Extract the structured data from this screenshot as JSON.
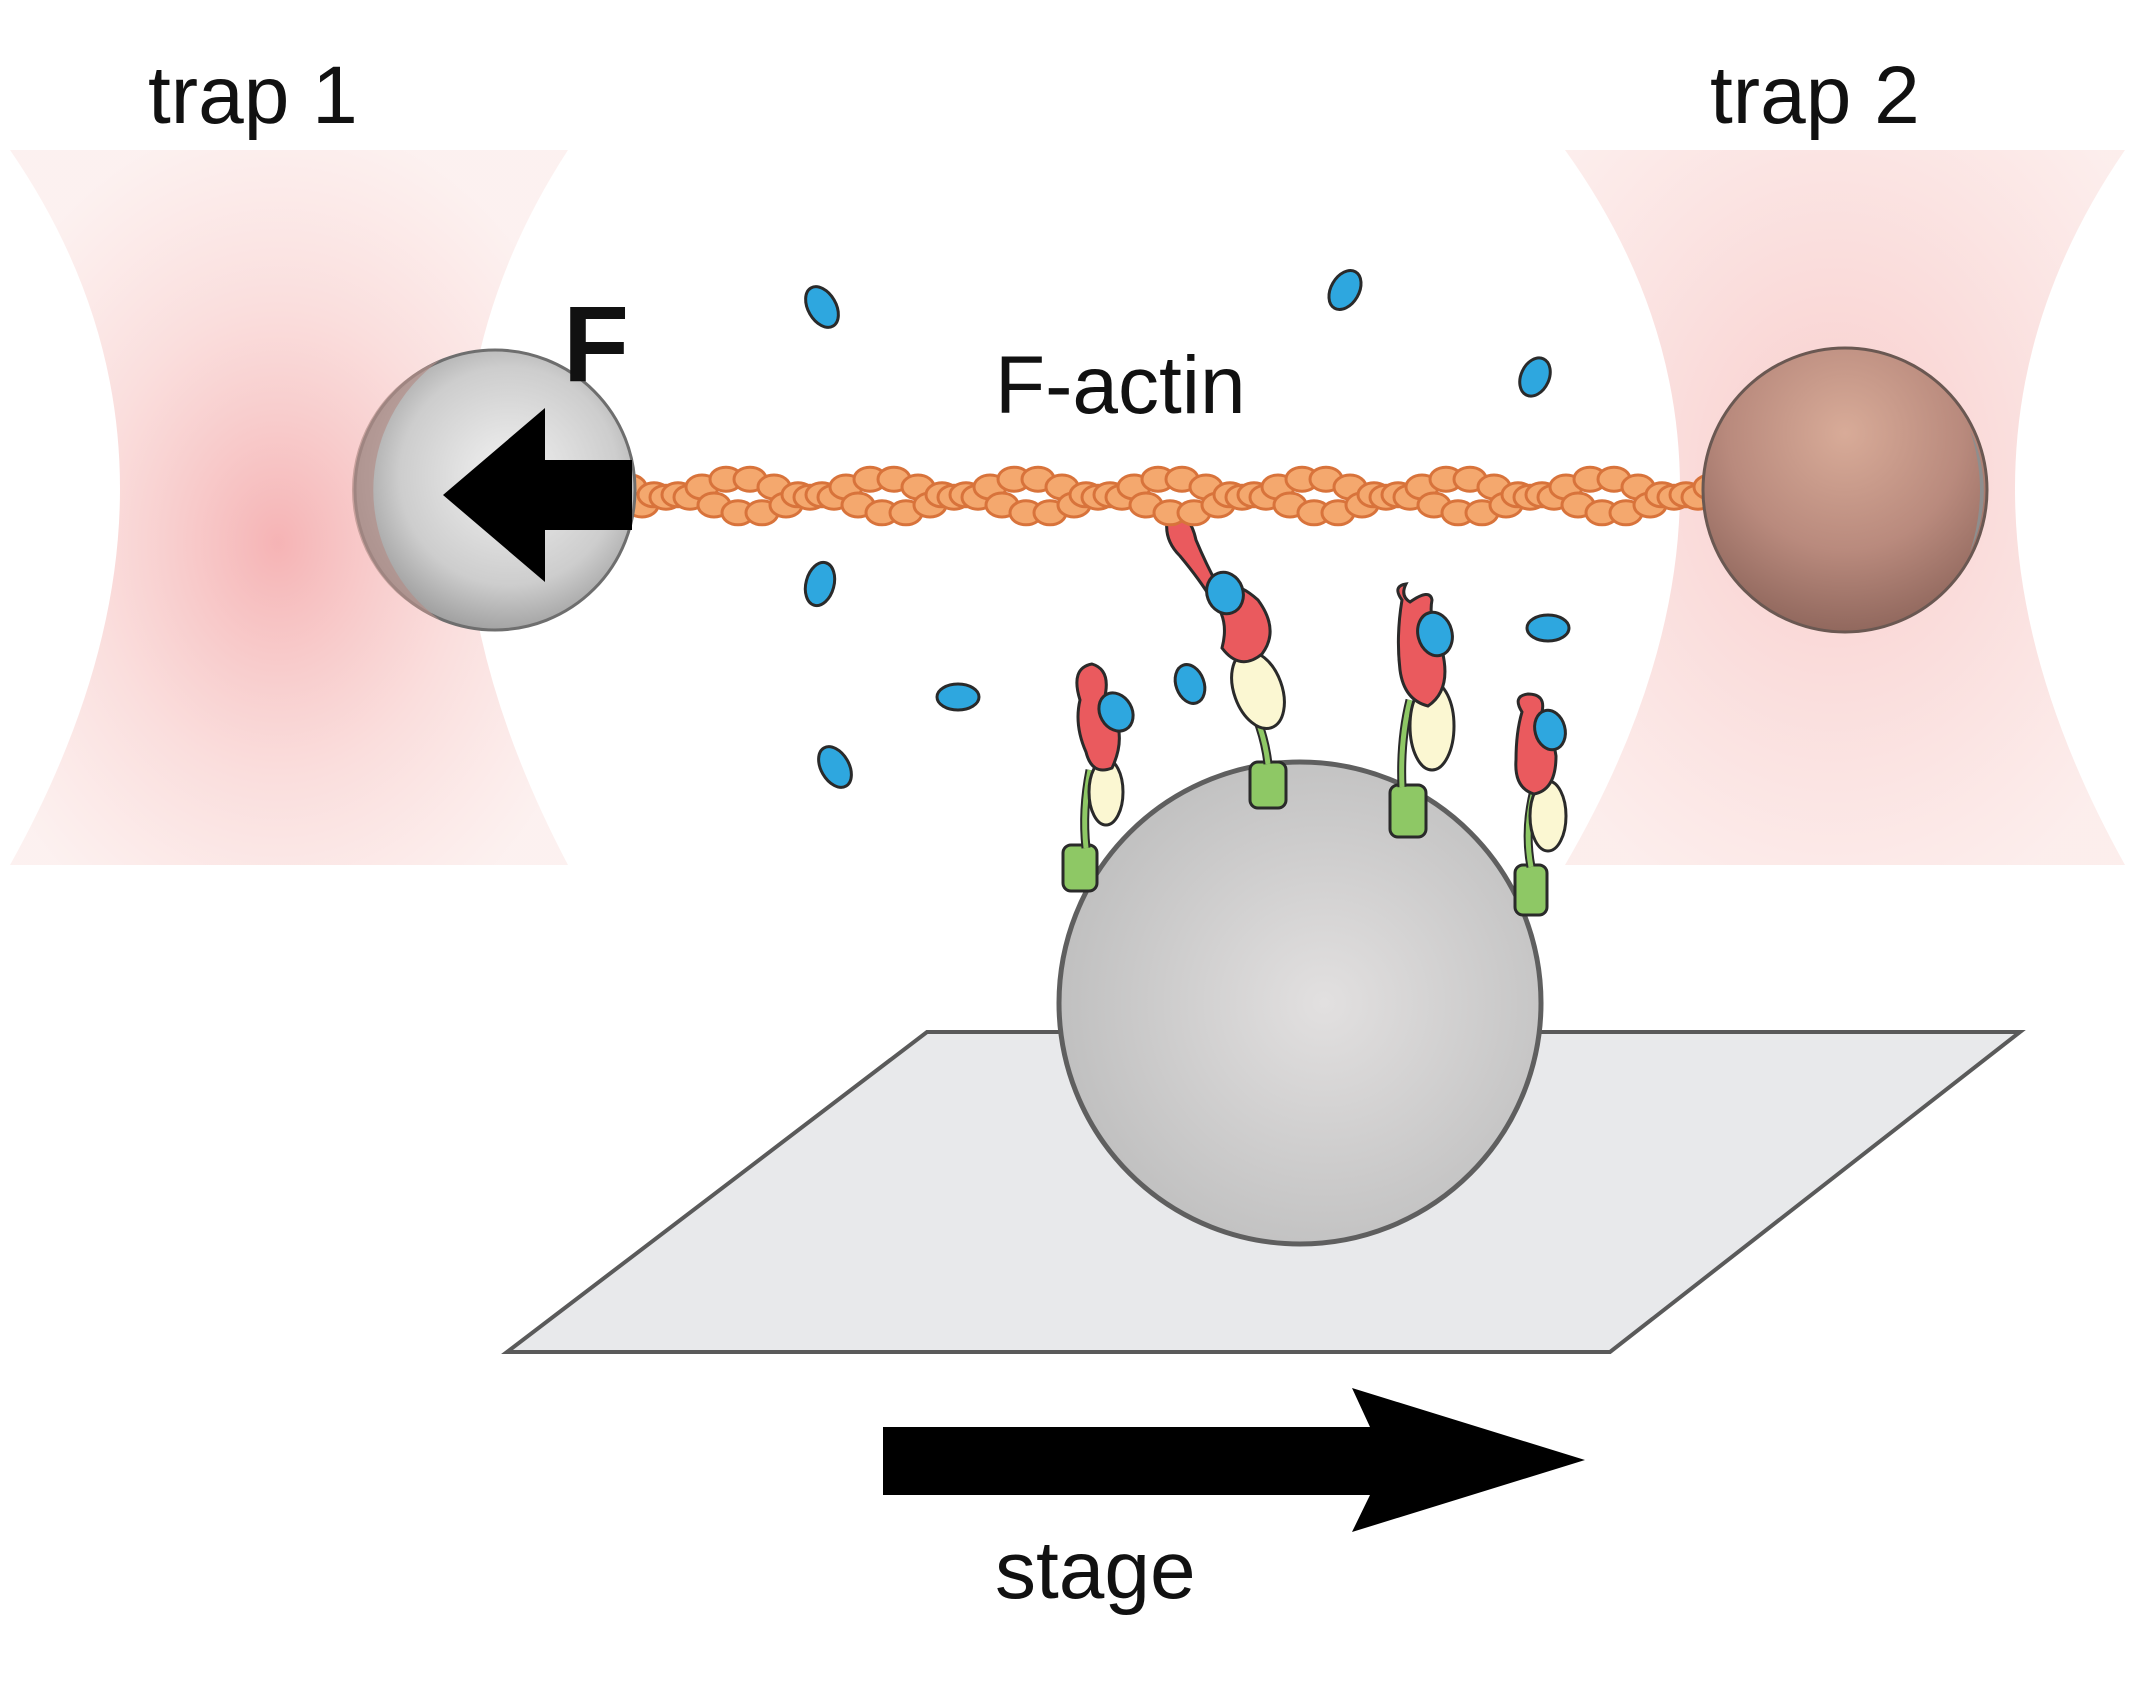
{
  "labels": {
    "trap_left": "trap 1",
    "trap_right": "trap 2",
    "filament": "F-actin",
    "force": "F",
    "stage": "stage"
  },
  "colors": {
    "trap_beam": "#f7c9c6",
    "trap_core": "#f29a9c",
    "actin_fill": "#f4a86e",
    "actin_edge": "#d8733b",
    "bead_gray": "#c9c9c9",
    "bead_brown": "#b7897c",
    "stage_fill": "#e8e9eb",
    "myosin_head": "#ea5a5e",
    "light_chain": "#fbf7d2",
    "lever_green": "#8ec865",
    "nucleotide_blue": "#2ea7df",
    "arrow": "#000000"
  },
  "icons": {
    "force_arrow": "left-arrow-icon",
    "stage_arrow": "right-arrow-icon"
  }
}
